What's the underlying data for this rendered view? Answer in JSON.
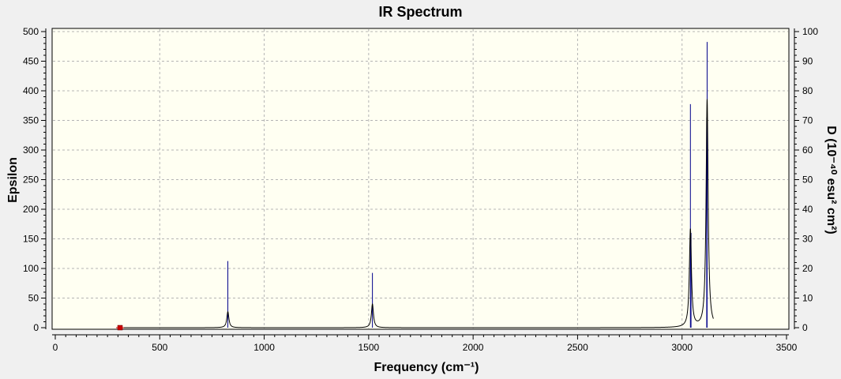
{
  "chart_data": {
    "type": "line",
    "title": "IR Spectrum",
    "xlabel": "Frequency (cm⁻¹)",
    "ylabel": "Epsilon",
    "y2label": "D (10⁻⁴⁰ esu² cm²)",
    "xlim": [
      0,
      3500
    ],
    "ylim": [
      0,
      500
    ],
    "y2lim": [
      0,
      100
    ],
    "xticks": [
      0,
      500,
      1000,
      1500,
      2000,
      2500,
      3000,
      3500
    ],
    "yticks": [
      0,
      50,
      100,
      150,
      200,
      250,
      300,
      350,
      400,
      450,
      500
    ],
    "y2ticks": [
      0,
      10,
      20,
      30,
      40,
      50,
      60,
      70,
      80,
      90,
      100
    ],
    "grid": true,
    "colors": {
      "plot_background": "#fffff2",
      "spectrum": "#000000",
      "sticks": "#00008b",
      "marker": "#cc0000",
      "grid": "#b4b4b4"
    },
    "peaks": [
      {
        "x": 826,
        "epsilon": 27,
        "intensity": 22.5
      },
      {
        "x": 1518,
        "epsilon": 40,
        "intensity": 18.5
      },
      {
        "x": 3040,
        "epsilon": 165,
        "intensity": 75.5
      },
      {
        "x": 3120,
        "epsilon": 385,
        "intensity": 96.5
      }
    ],
    "minor_sticks": [
      {
        "x": 3118,
        "intensity": 71
      },
      {
        "x": 3043,
        "intensity": 32
      }
    ],
    "marker": {
      "x": 310,
      "epsilon": 0
    },
    "spectrum_range": [
      310,
      3150
    ],
    "peak_width": 12
  }
}
